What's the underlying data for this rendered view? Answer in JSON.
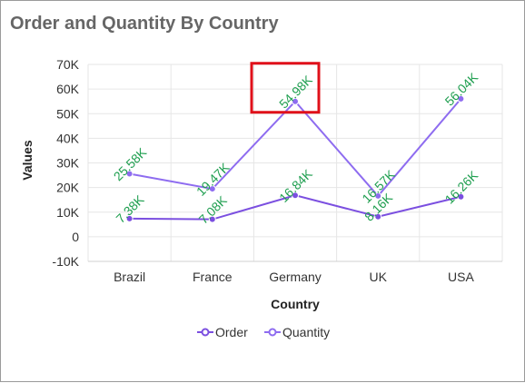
{
  "chart_data": {
    "type": "line",
    "title": "Order and Quantity By Country",
    "xlabel": "Country",
    "ylabel": "Values",
    "categories": [
      "Brazil",
      "France",
      "Germany",
      "UK",
      "USA"
    ],
    "ylim": [
      -10000,
      70000
    ],
    "yticks": [
      -10000,
      0,
      10000,
      20000,
      30000,
      40000,
      50000,
      60000,
      70000
    ],
    "ytick_labels": [
      "-10K",
      "0",
      "10K",
      "20K",
      "30K",
      "40K",
      "50K",
      "60K",
      "70K"
    ],
    "series": [
      {
        "name": "Order",
        "color": "#7b4fe0",
        "values": [
          7380,
          7080,
          16840,
          8160,
          16260
        ],
        "labels": [
          "7.38K",
          "7.08K",
          "16.84K",
          "8.16K",
          "16.26K"
        ]
      },
      {
        "name": "Quantity",
        "color": "#8e6cf0",
        "values": [
          25580,
          19470,
          54980,
          16570,
          56040
        ],
        "labels": [
          "25.58K",
          "19.47K",
          "54.98K",
          "16.57K",
          "56.04K"
        ]
      }
    ],
    "grid": true,
    "legend_position": "bottom",
    "data_label_color": "#1e9e4f",
    "highlight": {
      "series": "Quantity",
      "category": "Germany",
      "color": "#e0101a"
    }
  }
}
